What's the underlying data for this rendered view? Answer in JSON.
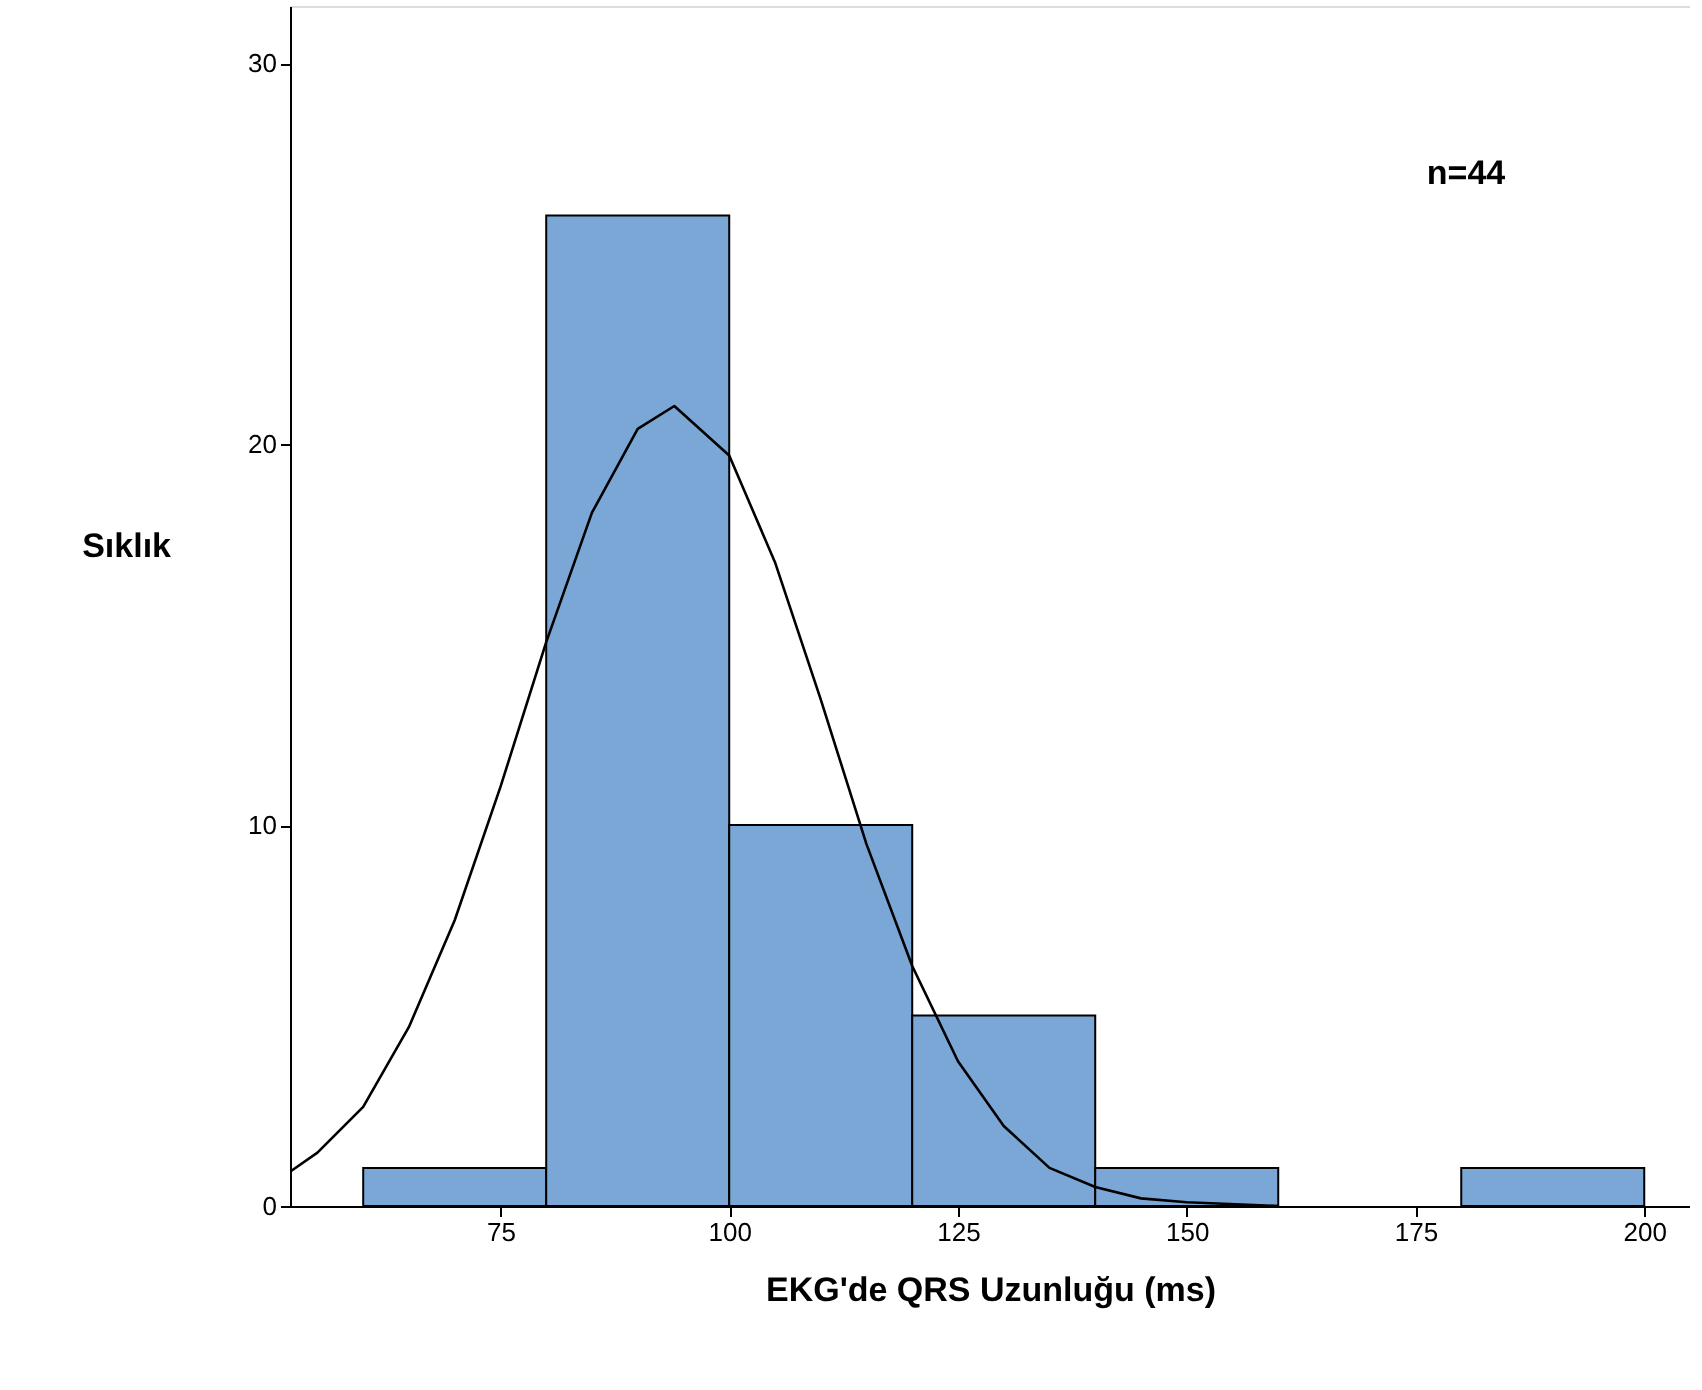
{
  "chart_data": {
    "type": "histogram",
    "xlabel": "EKG'de QRS Uzunluğu (ms)",
    "ylabel": "Sıklık",
    "bins": [
      60,
      80,
      100,
      120,
      140,
      160,
      180,
      200
    ],
    "values": [
      1,
      26,
      10,
      5,
      1,
      0,
      1
    ],
    "color": "#7ba7d7",
    "series": [
      {
        "type": "line",
        "color": "#000000",
        "x": [
          52,
          55,
          60,
          65,
          70,
          75,
          80,
          85,
          90,
          94,
          100,
          105,
          110,
          115,
          120,
          125,
          130,
          135,
          140,
          145,
          150,
          160
        ],
        "values": [
          0.9,
          1.4,
          2.6,
          4.7,
          7.5,
          11.0,
          14.8,
          18.2,
          20.4,
          21.0,
          19.7,
          16.9,
          13.3,
          9.5,
          6.3,
          3.8,
          2.1,
          1.0,
          0.5,
          0.2,
          0.1,
          0.0
        ]
      }
    ],
    "xlim": [
      52,
      205
    ],
    "xticks": [
      75,
      100,
      125,
      150,
      175,
      200
    ],
    "ylim": [
      0,
      31.5
    ],
    "yticks": [
      0,
      10,
      20,
      30
    ],
    "grid": false,
    "legend": false,
    "annotations": [
      "n=44"
    ]
  }
}
